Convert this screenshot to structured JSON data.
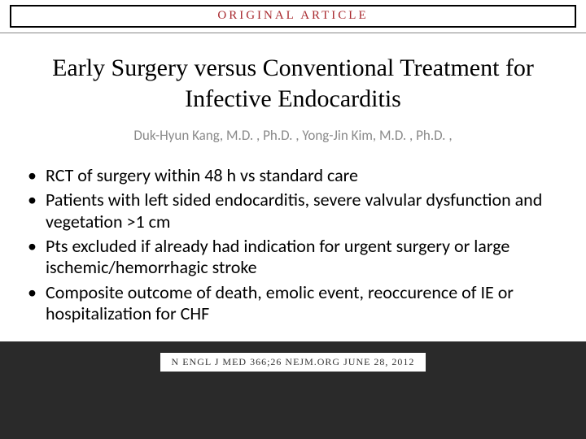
{
  "header": {
    "label": "ORIGINAL ARTICLE",
    "label_color": "#a8282d",
    "label_letterspacing": 3,
    "box_border_color": "#000000"
  },
  "title": {
    "text": "Early Surgery versus Conventional Treatment for Infective Endocarditis",
    "fontsize": 30,
    "color": "#000000"
  },
  "authors": {
    "text": "Duk-Hyun Kang, M.D. , Ph.D. , Yong-Jin Kim, M.D. , Ph.D. ,",
    "fontsize": 17,
    "color": "#8a8a8a"
  },
  "bullets": {
    "items": [
      "RCT of surgery within 48 h vs standard care",
      "Patients with left sided endocarditis, severe valvular dysfunction and vegetation >1 cm",
      "Pts excluded if already had indication for urgent surgery or large ischemic/hemorrhagic stroke",
      "Composite outcome of death, emolic event, reoccurence of IE or hospitalization for CHF"
    ],
    "fontsize": 22,
    "color": "#000000"
  },
  "citation": {
    "text": "N ENGL J MED 366;26   NEJM.ORG   JUNE 28, 2012",
    "fontsize": 12,
    "background": "#ffffff"
  },
  "colors": {
    "page_background": "#2a2a2a",
    "panel_background": "#ffffff"
  }
}
